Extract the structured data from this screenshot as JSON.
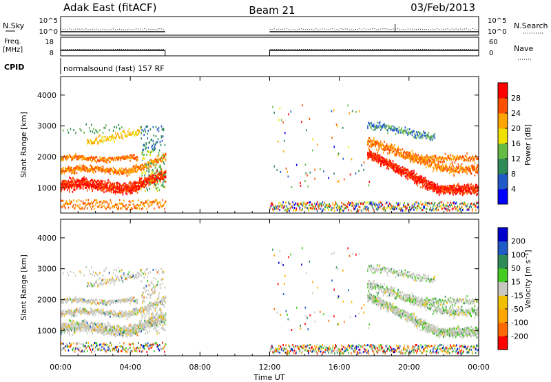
{
  "header": {
    "radar": "Adak East (fitACF)",
    "beam": "Beam 21",
    "date": "03/Feb/2013"
  },
  "panels": {
    "nsky": {
      "left_label": "N.Sky",
      "left_top": "10^5",
      "left_bottom": "10^0",
      "right_top": "10^5",
      "right_bottom": "10^0",
      "right_label": "N.Search"
    },
    "freq": {
      "left_label_1": "Freq.",
      "left_label_2": "[MHz]",
      "left_top": "18",
      "left_bottom": "8",
      "right_top": "60",
      "right_bottom": "0",
      "right_label": "Nave"
    },
    "cpid": {
      "label": "CPID",
      "text": "normalsound (fast) 157 RF"
    }
  },
  "colors": {
    "power": [
      "#0000ff",
      "#1f5ac6",
      "#2e8b57",
      "#66bb44",
      "#f0e000",
      "#ffa500",
      "#ff5000",
      "#ff0000"
    ],
    "velocity": [
      "#ff0000",
      "#ff6a00",
      "#ffa500",
      "#f0c000",
      "#c8c8c0",
      "#44cc22",
      "#2e8b57",
      "#1f5ac6",
      "#0000cc"
    ]
  },
  "chart_data": [
    {
      "type": "heatmap",
      "name": "power",
      "ylabel": "Slant Range [km]",
      "xlabel": "",
      "ylim": [
        180,
        4600
      ],
      "xlim": [
        0,
        24
      ],
      "yticks": [
        "1000",
        "2000",
        "3000",
        "4000"
      ],
      "xticks": [
        "00:00",
        "04:00",
        "08:00",
        "12:00",
        "16:00",
        "20:00",
        "00:00"
      ],
      "colorbar_label": "Power [dB]",
      "colorbar_ticks": [
        "4",
        "8",
        "12",
        "16",
        "20",
        "24",
        "28"
      ],
      "colorbar_range": [
        0,
        32
      ],
      "data_intervals_hours": [
        [
          0,
          6
        ],
        [
          12,
          24
        ]
      ]
    },
    {
      "type": "heatmap",
      "name": "velocity",
      "ylabel": "Slant Range [km]",
      "xlabel": "Time UT",
      "ylim": [
        180,
        4600
      ],
      "xlim": [
        0,
        24
      ],
      "yticks": [
        "1000",
        "2000",
        "3000",
        "4000"
      ],
      "xticks": [
        "00:00",
        "04:00",
        "08:00",
        "12:00",
        "16:00",
        "20:00",
        "00:00"
      ],
      "colorbar_label": "Velocity [m s⁻¹]",
      "colorbar_ticks": [
        "-200",
        "-100",
        "-50",
        "-15",
        "15",
        "50",
        "100",
        "200"
      ],
      "data_intervals_hours": [
        [
          0,
          6
        ],
        [
          12,
          24
        ]
      ]
    }
  ]
}
